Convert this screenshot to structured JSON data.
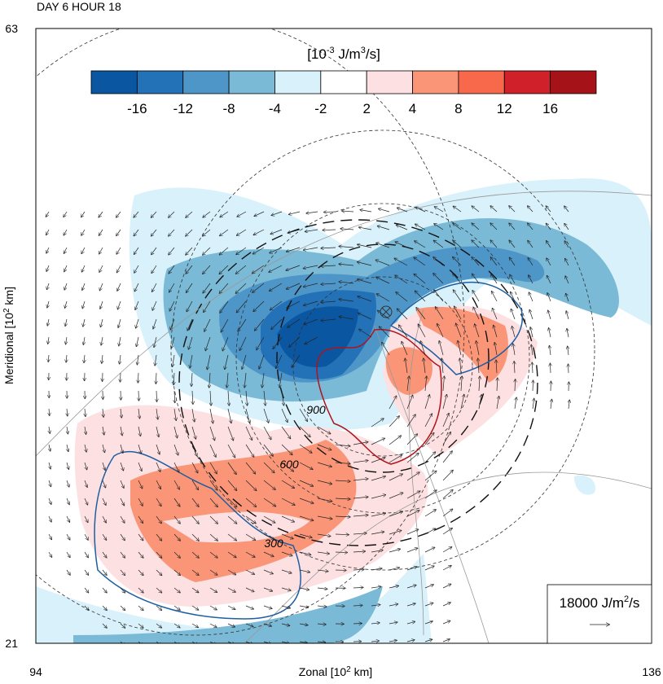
{
  "chart_data": {
    "type": "contour",
    "title": "DAY 6 HOUR 18",
    "xlabel": {
      "text": "Zonal [10",
      "sup": "2",
      "tail": " km]"
    },
    "ylabel": {
      "text": "Meridional [10",
      "sup": "2",
      "tail": " km]"
    },
    "xlim": [
      94,
      136
    ],
    "xticks": [
      94,
      136
    ],
    "ylim": [
      21,
      63
    ],
    "yticks": [
      21,
      63
    ],
    "colorbar": {
      "label": {
        "text": "[10",
        "sup": "-3",
        "tail": " J/m",
        "sup2": "3",
        "tail2": "/s]"
      },
      "levels": [
        -16,
        -12,
        -8,
        -4,
        -2,
        2,
        4,
        8,
        12,
        16
      ],
      "colors": [
        "#0b56a0",
        "#2372b8",
        "#4f96c8",
        "#7abad6",
        "#d8f1fa",
        "#ffffff",
        "#fde0e2",
        "#fa9677",
        "#f8694b",
        "#d0202a",
        "#a51318"
      ]
    },
    "contour_labels": [
      900,
      600,
      300
    ],
    "vector_reference": {
      "text": "18000 J/m",
      "sup": "2",
      "tail": "/s"
    }
  }
}
